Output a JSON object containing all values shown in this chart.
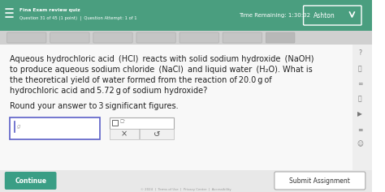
{
  "bg_color": "#ffffff",
  "header_color": "#4a9e7f",
  "header_text_color": "#ffffff",
  "header_top": "Fina Exam review quiz",
  "header_sub": "Question 31 of 45 (1 point)  |  Question Attempt: 1 of 1",
  "time_label": "Time Remaining: 1:30:32",
  "user_label": "Ashton",
  "body_text_color": "#222222",
  "input_box_border": "#5b5fc7",
  "input_box_bg": "#ffffff",
  "unit_box_bg": "#ffffff",
  "button_continue_bg": "#3a9e85",
  "button_continue_text": "Continue",
  "button_submit_text": "Submit Assignment",
  "x_mark": "×",
  "undo_mark": "↺"
}
